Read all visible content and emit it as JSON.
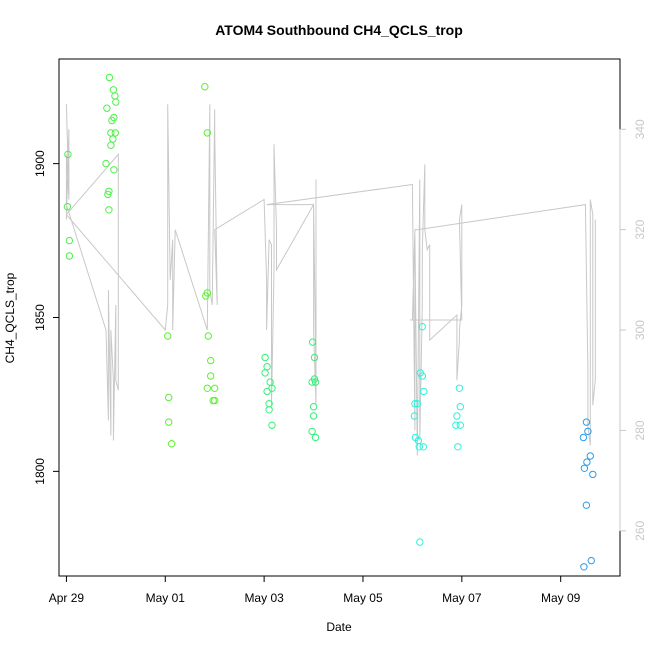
{
  "chart_data": {
    "type": "scatter",
    "title": "ATOM4 Southbound CH4_QCLS_trop",
    "xlabel": "Date",
    "ylabel": "CH4_QCLS_trop",
    "x_ticks": [
      {
        "day": 29,
        "label": "Apr 29"
      },
      {
        "day": 31,
        "label": "May 01"
      },
      {
        "day": 33,
        "label": "May 03"
      },
      {
        "day": 35,
        "label": "May 05"
      },
      {
        "day": 37,
        "label": "May 07"
      },
      {
        "day": 39,
        "label": "May 09"
      }
    ],
    "y_ticks": [
      1800,
      1850,
      1900
    ],
    "y2_ticks": [
      260,
      280,
      300,
      320,
      340
    ],
    "xlim": [
      28.85,
      40.2
    ],
    "ylim": [
      1766,
      1934
    ],
    "y2lim": [
      251,
      354
    ],
    "grid": false,
    "colors": {
      "axis": "#000000",
      "secondary_axis": "#c8c8c8",
      "trace_line": "#c8c8c8"
    },
    "series": [
      {
        "color": "#4ef04a",
        "points": [
          [
            29.03,
            1903
          ],
          [
            29.02,
            1886
          ],
          [
            29.06,
            1875
          ],
          [
            29.06,
            1870
          ],
          [
            29.87,
            1928
          ],
          [
            29.95,
            1924
          ],
          [
            29.98,
            1922
          ],
          [
            29.82,
            1918
          ],
          [
            30.0,
            1920
          ],
          [
            29.92,
            1914
          ],
          [
            29.96,
            1915
          ],
          [
            29.9,
            1910
          ],
          [
            29.99,
            1910
          ],
          [
            29.94,
            1908
          ],
          [
            29.9,
            1906
          ],
          [
            29.8,
            1900
          ],
          [
            29.96,
            1898
          ],
          [
            29.86,
            1891
          ],
          [
            29.84,
            1890
          ],
          [
            29.86,
            1885
          ]
        ]
      },
      {
        "color": "#5cf030",
        "points": [
          [
            31.05,
            1844
          ],
          [
            31.07,
            1824
          ],
          [
            31.07,
            1816
          ],
          [
            31.13,
            1809
          ],
          [
            31.8,
            1925
          ],
          [
            31.85,
            1910
          ],
          [
            31.85,
            1858
          ],
          [
            31.82,
            1857
          ],
          [
            31.87,
            1844
          ],
          [
            31.92,
            1836
          ],
          [
            31.92,
            1831
          ],
          [
            31.85,
            1827
          ],
          [
            32.0,
            1827
          ],
          [
            32.0,
            1823
          ],
          [
            31.97,
            1823
          ]
        ]
      },
      {
        "color": "#35f07a",
        "points": [
          [
            33.02,
            1837
          ],
          [
            33.06,
            1834
          ],
          [
            33.02,
            1832
          ],
          [
            33.12,
            1829
          ],
          [
            33.16,
            1827
          ],
          [
            33.06,
            1826
          ],
          [
            33.1,
            1822
          ],
          [
            33.1,
            1820
          ],
          [
            33.16,
            1815
          ],
          [
            33.98,
            1842
          ],
          [
            34.02,
            1837
          ],
          [
            34.02,
            1830
          ],
          [
            33.97,
            1829
          ],
          [
            34.04,
            1829
          ],
          [
            34.0,
            1821
          ],
          [
            34.0,
            1818
          ],
          [
            33.97,
            1813
          ],
          [
            34.04,
            1811
          ]
        ]
      },
      {
        "color": "#30f0dc",
        "points": [
          [
            36.05,
            1822
          ],
          [
            36.1,
            1822
          ],
          [
            36.04,
            1818
          ],
          [
            36.06,
            1811
          ],
          [
            36.12,
            1810
          ],
          [
            36.14,
            1808
          ],
          [
            36.22,
            1808
          ],
          [
            36.2,
            1847
          ],
          [
            36.16,
            1832
          ],
          [
            36.2,
            1831
          ],
          [
            36.23,
            1826
          ],
          [
            36.15,
            1777
          ],
          [
            36.95,
            1827
          ],
          [
            36.97,
            1821
          ],
          [
            36.9,
            1818
          ],
          [
            36.88,
            1815
          ],
          [
            36.97,
            1815
          ],
          [
            36.92,
            1808
          ]
        ]
      },
      {
        "color": "#2e9ce8",
        "points": [
          [
            39.52,
            1816
          ],
          [
            39.55,
            1813
          ],
          [
            39.46,
            1811
          ],
          [
            39.6,
            1805
          ],
          [
            39.53,
            1803
          ],
          [
            39.48,
            1801
          ],
          [
            39.65,
            1799
          ],
          [
            39.52,
            1789
          ],
          [
            39.47,
            1769
          ],
          [
            39.62,
            1771
          ]
        ]
      }
    ],
    "trace_right_axis": [
      [
        29.0,
        322
      ],
      [
        29.05,
        340
      ],
      [
        29.05,
        327
      ],
      [
        29.0,
        345
      ],
      [
        29.05,
        326
      ],
      [
        29.0,
        335
      ],
      [
        29.0,
        325
      ],
      [
        29.8,
        300
      ],
      [
        29.85,
        282
      ],
      [
        29.85,
        308
      ],
      [
        29.9,
        279
      ],
      [
        29.9,
        300
      ],
      [
        29.95,
        290
      ],
      [
        29.95,
        278
      ],
      [
        30.0,
        305
      ],
      [
        30.0,
        290
      ],
      [
        30.05,
        288
      ],
      [
        30.05,
        335
      ],
      [
        29.0,
        323
      ],
      [
        31.0,
        300
      ],
      [
        31.05,
        305
      ],
      [
        31.05,
        345
      ],
      [
        31.1,
        310
      ],
      [
        31.15,
        318
      ],
      [
        31.15,
        300
      ],
      [
        31.2,
        320
      ],
      [
        31.85,
        300
      ],
      [
        31.9,
        345
      ],
      [
        31.9,
        308
      ],
      [
        31.95,
        305
      ],
      [
        32.0,
        344
      ],
      [
        32.0,
        340
      ],
      [
        32.05,
        305
      ],
      [
        32.0,
        320
      ],
      [
        33.0,
        326
      ],
      [
        33.05,
        310
      ],
      [
        33.05,
        300
      ],
      [
        33.1,
        318
      ],
      [
        33.15,
        317
      ],
      [
        33.15,
        290
      ],
      [
        33.15,
        285
      ],
      [
        33.2,
        312
      ],
      [
        33.2,
        337
      ],
      [
        33.25,
        320
      ],
      [
        33.25,
        312
      ],
      [
        33.25,
        312
      ],
      [
        34.0,
        325
      ],
      [
        34.0,
        300
      ],
      [
        34.05,
        285
      ],
      [
        34.05,
        300
      ],
      [
        34.05,
        330
      ],
      [
        34.05,
        310
      ],
      [
        34.05,
        290
      ],
      [
        34.0,
        325
      ],
      [
        33.05,
        325
      ],
      [
        36.0,
        329
      ],
      [
        36.05,
        280
      ],
      [
        36.05,
        319
      ],
      [
        36.1,
        275
      ],
      [
        36.15,
        330
      ],
      [
        36.15,
        278
      ],
      [
        36.2,
        305
      ],
      [
        36.2,
        316
      ],
      [
        36.25,
        333
      ],
      [
        36.25,
        320
      ],
      [
        36.3,
        316
      ],
      [
        36.35,
        317
      ],
      [
        36.35,
        298
      ],
      [
        36.9,
        303
      ],
      [
        36.9,
        290
      ],
      [
        36.95,
        298
      ],
      [
        36.95,
        300
      ],
      [
        37.0,
        305
      ],
      [
        37.0,
        325
      ],
      [
        36.95,
        322
      ],
      [
        37.0,
        302
      ],
      [
        36.95,
        302
      ],
      [
        35.95,
        302
      ],
      [
        36.0,
        302
      ],
      [
        36.05,
        320
      ],
      [
        36.1,
        320
      ],
      [
        39.5,
        325
      ],
      [
        39.55,
        292
      ],
      [
        39.55,
        281
      ],
      [
        39.6,
        277
      ],
      [
        39.6,
        326
      ],
      [
        39.65,
        323
      ],
      [
        39.65,
        285
      ],
      [
        39.7,
        290
      ],
      [
        39.7,
        322
      ]
    ]
  }
}
